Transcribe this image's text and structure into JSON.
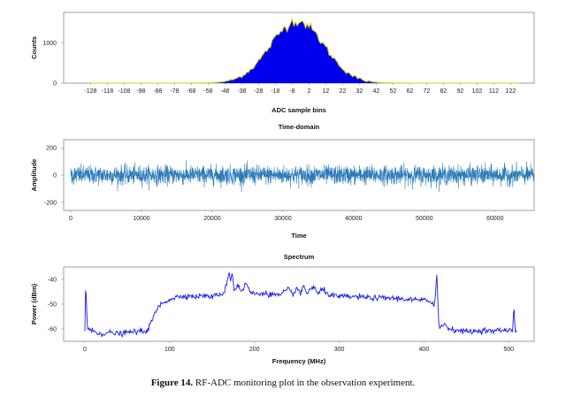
{
  "caption": {
    "label": "Figure 14.",
    "text": "RF-ADC monitoring plot in the observation experiment."
  },
  "colors": {
    "histogram_fill": "#0000ee",
    "histogram_edge": "#d4d40a",
    "time_series": "#2a7ab8",
    "spectrum": "#1a1aee"
  },
  "chart_data": [
    {
      "type": "bar",
      "title": "",
      "xlabel": "ADC sample bins",
      "ylabel": "Counts",
      "ylim": [
        0,
        1750
      ],
      "xlim": [
        -144,
        136
      ],
      "grid": false,
      "yticks": [
        0,
        1000
      ],
      "xticks": [
        -128,
        -118,
        -108,
        -98,
        -88,
        -78,
        -68,
        -58,
        -48,
        -38,
        -28,
        -18,
        -8,
        2,
        12,
        22,
        32,
        42,
        52,
        62,
        72,
        82,
        92,
        102,
        112,
        122
      ],
      "xtick_labels": [
        "-128",
        "-118",
        "-108",
        "-98",
        "-88",
        "-78",
        "-68",
        "-58",
        "-48",
        "-38",
        "-28",
        "-18",
        "-8",
        "2",
        "12",
        "22",
        "32",
        "42",
        "52",
        "62",
        "72",
        "82",
        "92",
        "102",
        "112",
        "122"
      ],
      "ytick_labels": [
        "0",
        "1000"
      ],
      "distribution": {
        "shape": "gaussian",
        "center": -5,
        "sigma": 16,
        "peak": 1540
      },
      "series": [
        {
          "values_note_x": [
            -40,
            -30,
            -20,
            -10,
            -5,
            0,
            10,
            20,
            30,
            40
          ],
          "values": [
            120,
            410,
            890,
            1380,
            1540,
            1480,
            1180,
            700,
            290,
            80
          ]
        }
      ]
    },
    {
      "type": "line",
      "title": "Time-domain",
      "xlabel": "Time",
      "ylabel": "Amplitude",
      "xlim": [
        -1000,
        65536
      ],
      "ylim": [
        -260,
        260
      ],
      "grid": false,
      "xticks": [
        0,
        10000,
        20000,
        30000,
        40000,
        50000,
        60000
      ],
      "xtick_labels": [
        "0",
        "10000",
        "20000",
        "30000",
        "40000",
        "50000",
        "60000"
      ],
      "yticks": [
        -200,
        0,
        200
      ],
      "ytick_labels": [
        "-200",
        "0",
        "200"
      ],
      "signal": {
        "mean": 0,
        "std": 34,
        "x_end": 65535
      }
    },
    {
      "type": "line",
      "title": "Spectrum",
      "xlabel": "Frequency (MHz)",
      "ylabel": "Power (dBm)",
      "xlim": [
        -25,
        530
      ],
      "ylim": [
        -65,
        -35
      ],
      "grid": false,
      "xticks": [
        0,
        100,
        200,
        300,
        400,
        500
      ],
      "xtick_labels": [
        "0",
        "100",
        "200",
        "300",
        "400",
        "500"
      ],
      "yticks": [
        -40,
        -50,
        -60
      ],
      "ytick_labels": [
        "-40",
        "-50",
        "-60"
      ],
      "series": [
        {
          "x": [
            0,
            1,
            3,
            10,
            20,
            30,
            40,
            50,
            60,
            70,
            75,
            80,
            85,
            90,
            100,
            110,
            120,
            130,
            140,
            150,
            160,
            165,
            170,
            172,
            174,
            176,
            178,
            180,
            185,
            190,
            195,
            200,
            210,
            220,
            230,
            240,
            245,
            250,
            255,
            258,
            262,
            265,
            270,
            275,
            280,
            290,
            300,
            320,
            340,
            360,
            380,
            400,
            410,
            412,
            414,
            415,
            416,
            417,
            418,
            420,
            425,
            430,
            440,
            450,
            460,
            470,
            480,
            490,
            500,
            505,
            506,
            507,
            508,
            510
          ],
          "y": [
            -61,
            -40,
            -60,
            -61,
            -62,
            -61.5,
            -62,
            -61.5,
            -61,
            -61,
            -60,
            -56,
            -52,
            -50,
            -48,
            -47,
            -46.5,
            -47,
            -46.5,
            -47,
            -46,
            -45,
            -37,
            -40,
            -37.5,
            -44,
            -44,
            -42,
            -45,
            -41.5,
            -45,
            -46,
            -45.5,
            -46,
            -46.5,
            -44,
            -46,
            -43.5,
            -46,
            -42.5,
            -46,
            -44,
            -43,
            -46,
            -44,
            -46.5,
            -47,
            -47,
            -47.5,
            -47.5,
            -48,
            -48.5,
            -49,
            -51,
            -44,
            -37,
            -45,
            -55,
            -60,
            -59,
            -58,
            -60,
            -60.5,
            -61,
            -61,
            -60.5,
            -61,
            -60.5,
            -60.5,
            -60,
            -48,
            -58,
            -61,
            -61
          ]
        }
      ]
    }
  ]
}
